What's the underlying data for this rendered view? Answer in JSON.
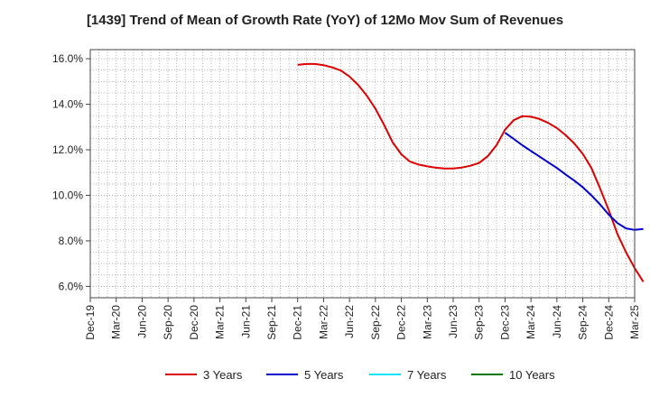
{
  "chart_data": {
    "type": "line",
    "title": "[1439]  Trend of Mean of Growth Rate (YoY) of 12Mo Mov Sum of Revenues",
    "xlabel": "",
    "ylabel": "",
    "ylim": [
      5.5,
      16.4
    ],
    "y_ticks": [
      6.0,
      8.0,
      10.0,
      12.0,
      14.0,
      16.0
    ],
    "y_tick_labels": [
      "6.0%",
      "8.0%",
      "10.0%",
      "12.0%",
      "14.0%",
      "16.0%"
    ],
    "x_tick_labels": [
      "Dec-19",
      "Mar-20",
      "Jun-20",
      "Sep-20",
      "Dec-20",
      "Mar-21",
      "Jun-21",
      "Sep-21",
      "Dec-21",
      "Mar-22",
      "Jun-22",
      "Sep-22",
      "Dec-22",
      "Mar-23",
      "Jun-23",
      "Sep-23",
      "Dec-23",
      "Mar-24",
      "Jun-24",
      "Sep-24",
      "Dec-24",
      "Mar-25"
    ],
    "x_range_months": [
      0,
      63
    ],
    "grid": true,
    "legend_position": "bottom",
    "series": [
      {
        "name": "3 Years",
        "color": "#dd0000",
        "points": [
          [
            24,
            15.73
          ],
          [
            25,
            15.77
          ],
          [
            26,
            15.77
          ],
          [
            27,
            15.72
          ],
          [
            28,
            15.62
          ],
          [
            29,
            15.48
          ],
          [
            30,
            15.22
          ],
          [
            31,
            14.85
          ],
          [
            32,
            14.38
          ],
          [
            33,
            13.8
          ],
          [
            34,
            13.1
          ],
          [
            35,
            12.32
          ],
          [
            36,
            11.8
          ],
          [
            37,
            11.48
          ],
          [
            38,
            11.35
          ],
          [
            39,
            11.27
          ],
          [
            40,
            11.21
          ],
          [
            41,
            11.18
          ],
          [
            42,
            11.18
          ],
          [
            43,
            11.22
          ],
          [
            44,
            11.3
          ],
          [
            45,
            11.42
          ],
          [
            46,
            11.72
          ],
          [
            47,
            12.2
          ],
          [
            48,
            12.88
          ],
          [
            49,
            13.3
          ],
          [
            50,
            13.48
          ],
          [
            51,
            13.45
          ],
          [
            52,
            13.35
          ],
          [
            53,
            13.18
          ],
          [
            54,
            12.95
          ],
          [
            55,
            12.65
          ],
          [
            56,
            12.28
          ],
          [
            57,
            11.82
          ],
          [
            58,
            11.2
          ],
          [
            59,
            10.3
          ],
          [
            60,
            9.35
          ],
          [
            61,
            8.3
          ],
          [
            62,
            7.5
          ],
          [
            63,
            6.8
          ],
          [
            64,
            6.2
          ]
        ]
      },
      {
        "name": "5 Years",
        "color": "#0000cc",
        "points": [
          [
            48,
            12.75
          ],
          [
            49,
            12.48
          ],
          [
            50,
            12.2
          ],
          [
            51,
            11.95
          ],
          [
            52,
            11.7
          ],
          [
            53,
            11.45
          ],
          [
            54,
            11.2
          ],
          [
            55,
            10.92
          ],
          [
            56,
            10.65
          ],
          [
            57,
            10.35
          ],
          [
            58,
            10.0
          ],
          [
            59,
            9.6
          ],
          [
            60,
            9.15
          ],
          [
            61,
            8.78
          ],
          [
            62,
            8.55
          ],
          [
            63,
            8.48
          ],
          [
            64,
            8.52
          ]
        ]
      },
      {
        "name": "7 Years",
        "color": "#00e5ff",
        "points": []
      },
      {
        "name": "10 Years",
        "color": "#007700",
        "points": []
      }
    ]
  }
}
